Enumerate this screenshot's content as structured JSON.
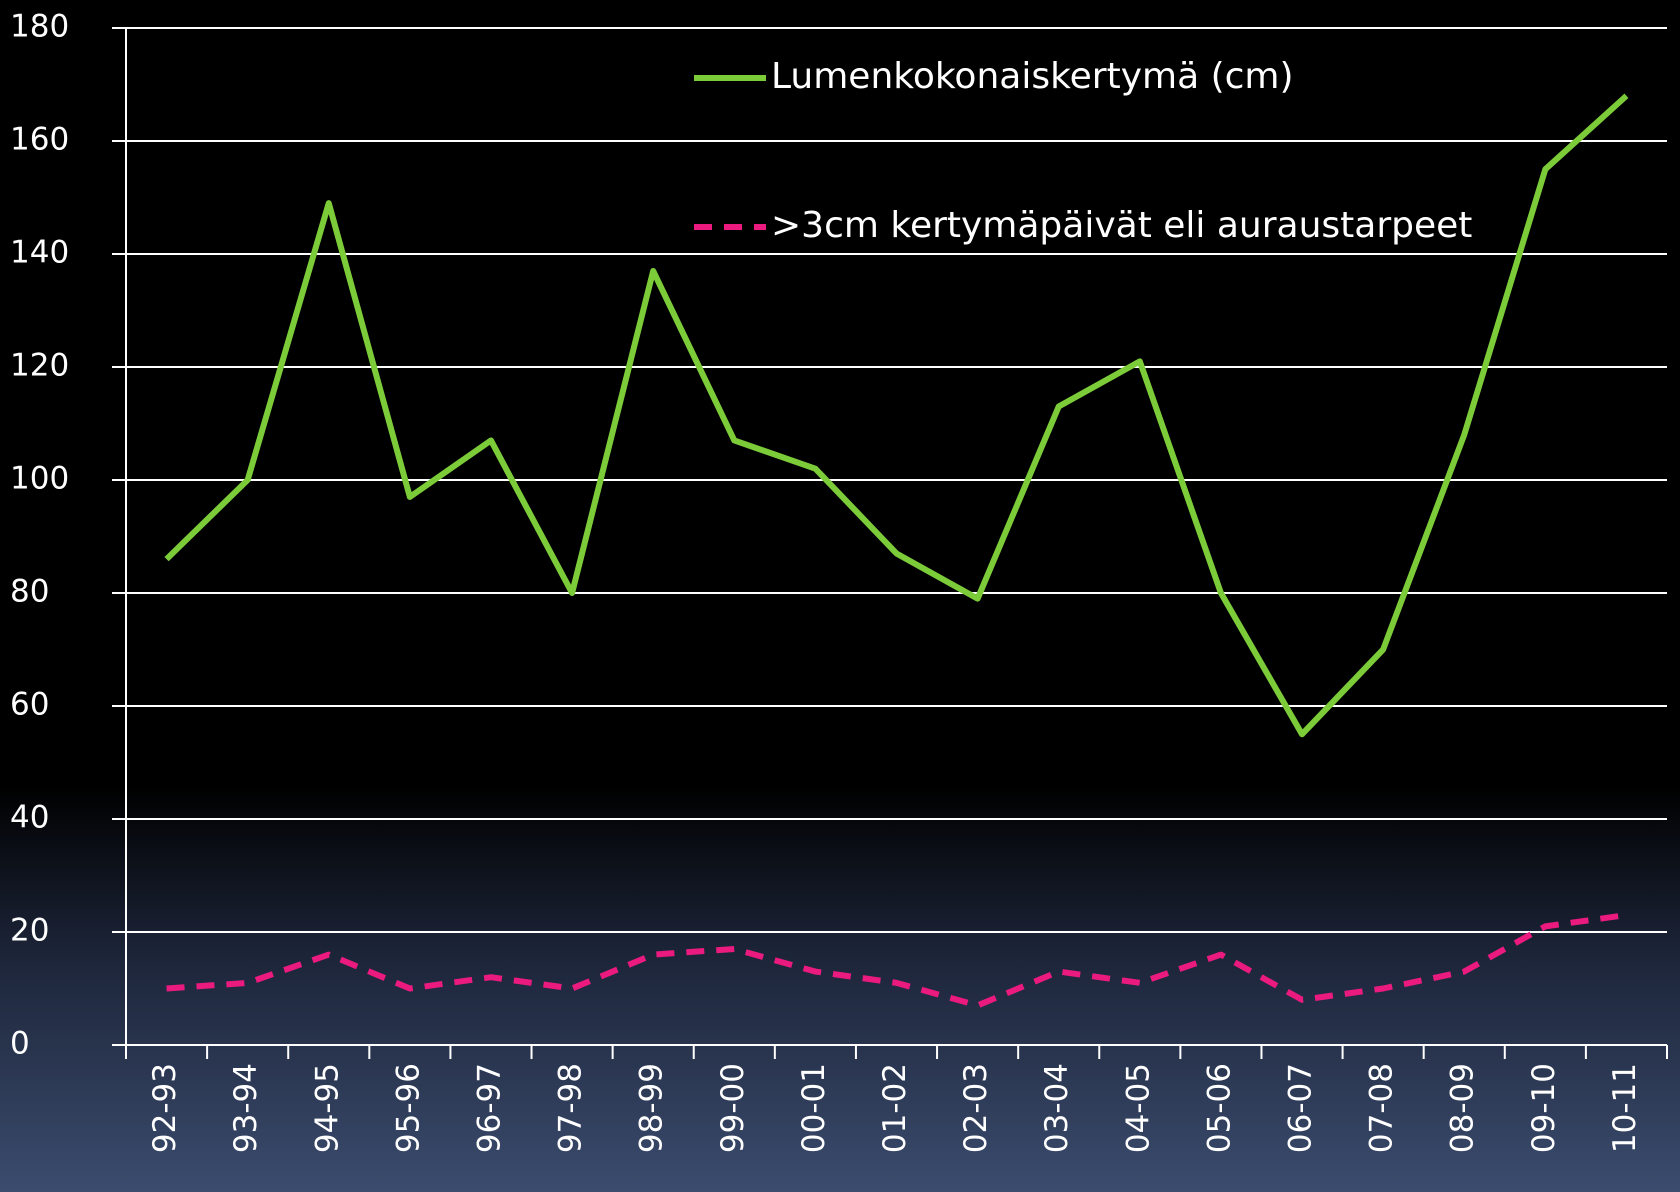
{
  "chart_data": {
    "type": "line",
    "categories": [
      "92-93",
      "93-94",
      "94-95",
      "95-96",
      "96-97",
      "97-98",
      "98-99",
      "99-00",
      "00-01",
      "01-02",
      "02-03",
      "03-04",
      "04-05",
      "05-06",
      "06-07",
      "07-08",
      "08-09",
      "09-10",
      "10-11"
    ],
    "series": [
      {
        "name": "Lumenkokonaiskertymä (cm)",
        "color": "#7ccc3a",
        "dash": "solid",
        "values": [
          86,
          100,
          149,
          97,
          107,
          80,
          137,
          107,
          102,
          87,
          79,
          113,
          121,
          80,
          55,
          70,
          108,
          155,
          168
        ]
      },
      {
        "name": ">3cm kertymäpäivät eli auraustarpeet",
        "color": "#ea1a7f",
        "dash": "dashed",
        "values": [
          10,
          11,
          16,
          10,
          12,
          10,
          16,
          17,
          13,
          11,
          7,
          13,
          11,
          16,
          8,
          10,
          13,
          21,
          23
        ]
      }
    ],
    "ylim": [
      0,
      180
    ],
    "yticks": [
      0,
      20,
      40,
      60,
      80,
      100,
      120,
      140,
      160,
      180
    ],
    "grid": true
  }
}
